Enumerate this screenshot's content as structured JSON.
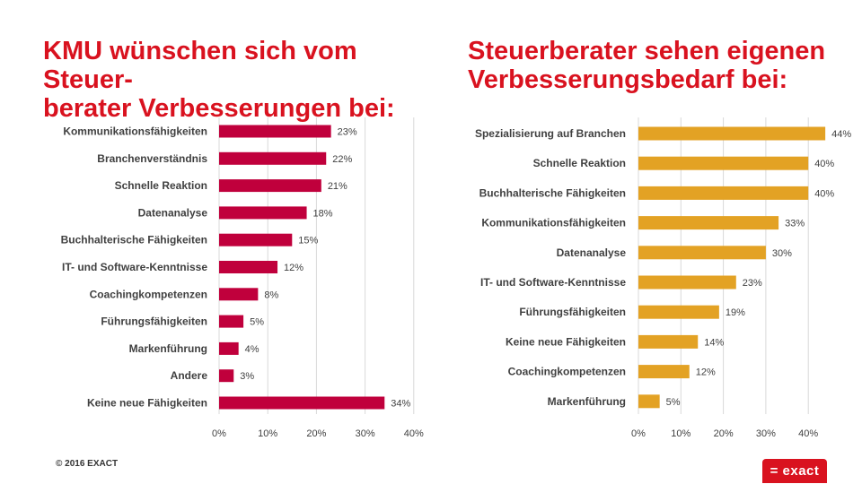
{
  "chart_data": [
    {
      "type": "bar",
      "orientation": "horizontal",
      "title": "KMU wünschen sich vom Steuer-berater Verbesserungen bei:",
      "title_lines": [
        "KMU wünschen sich vom Steuer-",
        "berater Verbesserungen bei:"
      ],
      "categories": [
        "Kommunikationsfähigkeiten",
        "Branchenverständnis",
        "Schnelle Reaktion",
        "Datenanalyse",
        "Buchhalterische Fähigkeiten",
        "IT- und Software-Kenntnisse",
        "Coachingkompetenzen",
        "Führungsfähigkeiten",
        "Markenführung",
        "Andere",
        "Keine neue Fähigkeiten"
      ],
      "values": [
        23,
        22,
        21,
        18,
        15,
        12,
        8,
        5,
        4,
        3,
        34
      ],
      "value_labels": [
        "23%",
        "22%",
        "21%",
        "18%",
        "15%",
        "12%",
        "8%",
        "5%",
        "4%",
        "3%",
        "34%"
      ],
      "xlim": [
        0,
        40
      ],
      "ticks": [
        0,
        10,
        20,
        30,
        40
      ],
      "tick_labels": [
        "0%",
        "10%",
        "20%",
        "30%",
        "40%"
      ],
      "color": "#c0003c",
      "grid": true
    },
    {
      "type": "bar",
      "orientation": "horizontal",
      "title": "Steuerberater sehen eigenen Verbesserungsbedarf bei:",
      "title_lines": [
        "Steuerberater sehen eigenen",
        "Verbesserungsbedarf bei:"
      ],
      "categories": [
        "Spezialisierung auf Branchen",
        "Schnelle Reaktion",
        "Buchhalterische Fähigkeiten",
        "Kommunikationsfähigkeiten",
        "Datenanalyse",
        "IT- und Software-Kenntnisse",
        "Führungsfähigkeiten",
        "Keine neue Fähigkeiten",
        "Coachingkompetenzen",
        "Markenführung"
      ],
      "values": [
        44,
        40,
        40,
        33,
        30,
        23,
        19,
        14,
        12,
        5
      ],
      "value_labels": [
        "44%",
        "40%",
        "40%",
        "33%",
        "30%",
        "23%",
        "19%",
        "14%",
        "12%",
        "5%"
      ],
      "xlim": [
        0,
        45
      ],
      "ticks": [
        0,
        10,
        20,
        30,
        40
      ],
      "tick_labels": [
        "0%",
        "10%",
        "20%",
        "30%",
        "40%"
      ],
      "color": "#e3a224",
      "grid": true
    }
  ],
  "footer": {
    "copyright": "© 2016 EXACT"
  },
  "logo": {
    "text": "= exact",
    "color": "#d9121f"
  }
}
